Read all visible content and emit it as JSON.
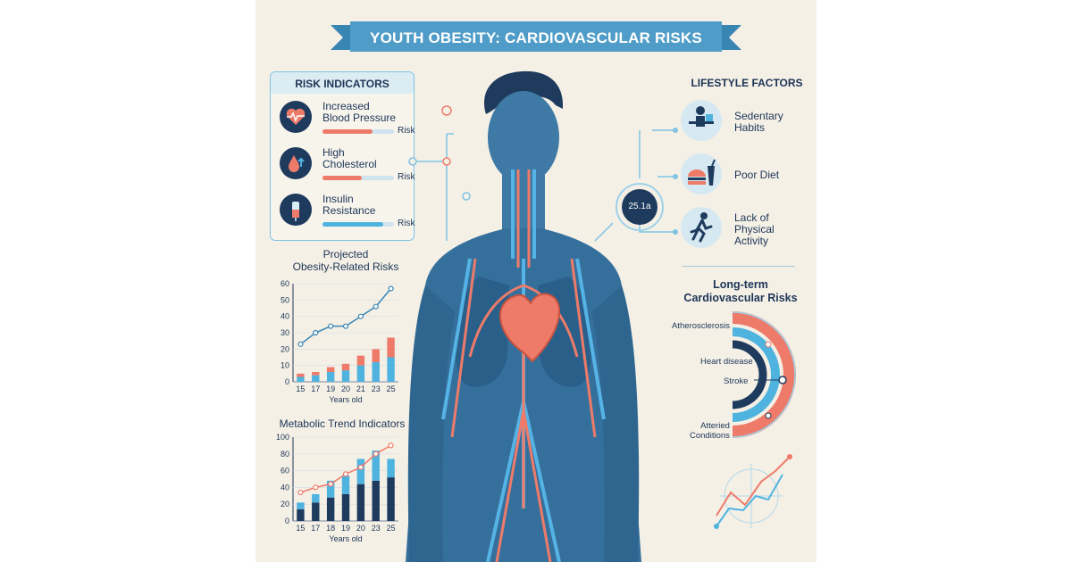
{
  "title": "YOUTH OBESITY: CARDIOVASCULAR RISKS",
  "risk_indicators": {
    "header": "RISK INDICATORS",
    "items": [
      {
        "label_line1": "Increased",
        "label_line2": "Blood Pressure",
        "tag": "Risk",
        "level": 0.7,
        "color": "#ee7b6a",
        "icon": "heart-pulse-icon"
      },
      {
        "label_line1": "High",
        "label_line2": "Cholesterol",
        "tag": "Risk",
        "level": 0.55,
        "color": "#ee7b6a",
        "icon": "blood-drop-icon"
      },
      {
        "label_line1": "Insulin",
        "label_line2": "Resistance",
        "tag": "Risk",
        "level": 0.85,
        "color": "#4fb3e0",
        "icon": "syringe-icon"
      }
    ]
  },
  "connector_badge": "25.1a",
  "lifestyle": {
    "title": "LIFESTYLE FACTORS",
    "items": [
      {
        "label_line1": "Sedentary",
        "label_line2": "Habits",
        "label_line3": "",
        "icon": "desk-person-icon"
      },
      {
        "label_line1": "Poor Diet",
        "label_line2": "",
        "label_line3": "",
        "icon": "burger-drink-icon"
      },
      {
        "label_line1": "Lack of",
        "label_line2": "Physical",
        "label_line3": "Activity",
        "icon": "running-person-icon"
      }
    ]
  },
  "long_term": {
    "title_line1": "Long-term",
    "title_line2": "Cardiovascular Risks",
    "labels": {
      "a": "Atherosclerosis",
      "b": "Heart disease",
      "c": "Stroke",
      "d_line1": "Atteried",
      "d_line2": "Conditions"
    }
  },
  "colors": {
    "navy": "#1e3b5e",
    "coral": "#ee7b6a",
    "sky": "#4fb3e0",
    "light_sky": "#9fd2ea"
  },
  "chart_data": [
    {
      "type": "bar",
      "title_line1": "Projected",
      "title_line2": "Obesity-Related Risks",
      "categories": [
        "15",
        "17",
        "19",
        "20",
        "21",
        "23",
        "25"
      ],
      "xlabel": "Years old",
      "ylabel": "",
      "ylim": [
        0,
        60
      ],
      "yticks": [
        0,
        10,
        20,
        30,
        40,
        50,
        60
      ],
      "series": [
        {
          "values": [
            3,
            4,
            6,
            7,
            10,
            12,
            15
          ],
          "color": "#4fb3e0"
        },
        {
          "values": [
            2,
            2,
            3,
            4,
            6,
            8,
            12
          ],
          "color": "#ee7b6a"
        }
      ],
      "line": [
        23,
        30,
        34,
        34,
        40,
        46,
        57
      ]
    },
    {
      "type": "bar",
      "title": "Metabolic Trend Indicators",
      "categories": [
        "15",
        "17",
        "18",
        "19",
        "20",
        "23",
        "25"
      ],
      "xlabel": "Years old",
      "ylabel": "",
      "ylim": [
        0,
        100
      ],
      "yticks": [
        0,
        20,
        40,
        60,
        80,
        100
      ],
      "series": [
        {
          "values": [
            14,
            22,
            28,
            32,
            44,
            48,
            52
          ],
          "color": "#1e3b5e"
        },
        {
          "values": [
            8,
            10,
            20,
            22,
            30,
            36,
            22
          ],
          "color": "#4fb3e0"
        }
      ],
      "line": [
        34,
        40,
        44,
        56,
        64,
        80,
        90
      ]
    }
  ]
}
